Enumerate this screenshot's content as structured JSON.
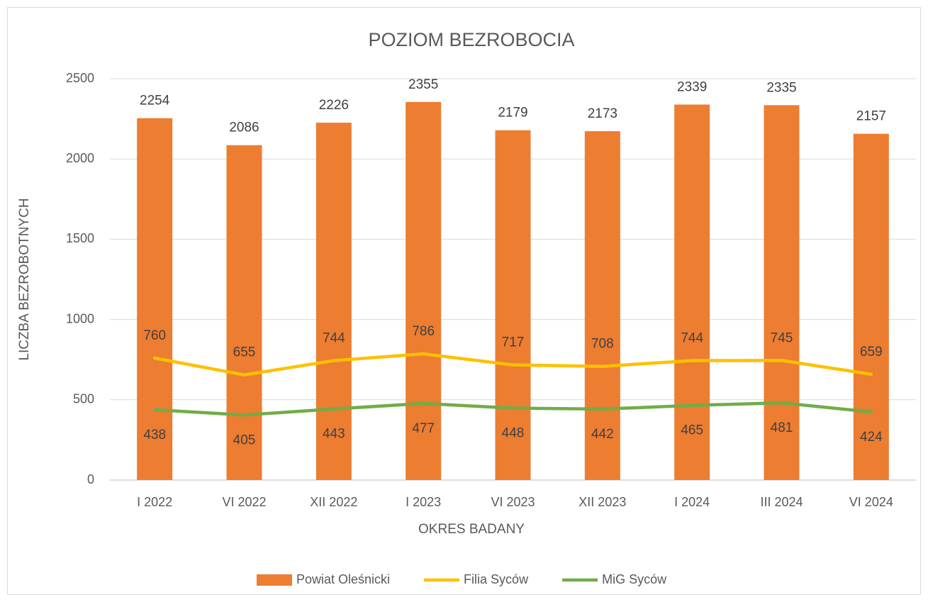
{
  "chart_data": {
    "type": "bar",
    "title": "POZIOM BEZROBOCIA",
    "x_label": "OKRES BADANY",
    "y_label": "LICZBA BEZROBOTNYCH",
    "categories": [
      "I 2022",
      "VI 2022",
      "XII 2022",
      "I 2023",
      "VI 2023",
      "XII 2023",
      "I 2024",
      "III 2024",
      "VI 2024"
    ],
    "series": [
      {
        "name": "Powiat Oleśnicki",
        "type": "bar",
        "color": "#ed7d31",
        "label_position": "above",
        "values": [
          2254,
          2086,
          2226,
          2355,
          2179,
          2173,
          2339,
          2335,
          2157
        ]
      },
      {
        "name": "Filia Syców",
        "type": "line",
        "color": "#ffc000",
        "label_position": "above",
        "values": [
          760,
          655,
          744,
          786,
          717,
          708,
          744,
          745,
          659
        ]
      },
      {
        "name": "MiG Syców",
        "type": "line",
        "color": "#70ad47",
        "label_position": "below",
        "values": [
          438,
          405,
          443,
          477,
          448,
          442,
          465,
          481,
          424
        ]
      }
    ],
    "ylim": [
      0,
      2500
    ],
    "yticks": [
      0,
      500,
      1000,
      1500,
      2000,
      2500
    ],
    "grid": true,
    "legend": "bottom"
  }
}
